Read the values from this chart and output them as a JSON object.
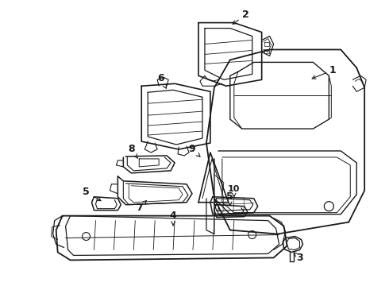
{
  "bg_color": "#ffffff",
  "line_color": "#1a1a1a",
  "fig_width": 4.9,
  "fig_height": 3.6,
  "dpi": 100,
  "label_fontsize": 9,
  "label_bold": true
}
